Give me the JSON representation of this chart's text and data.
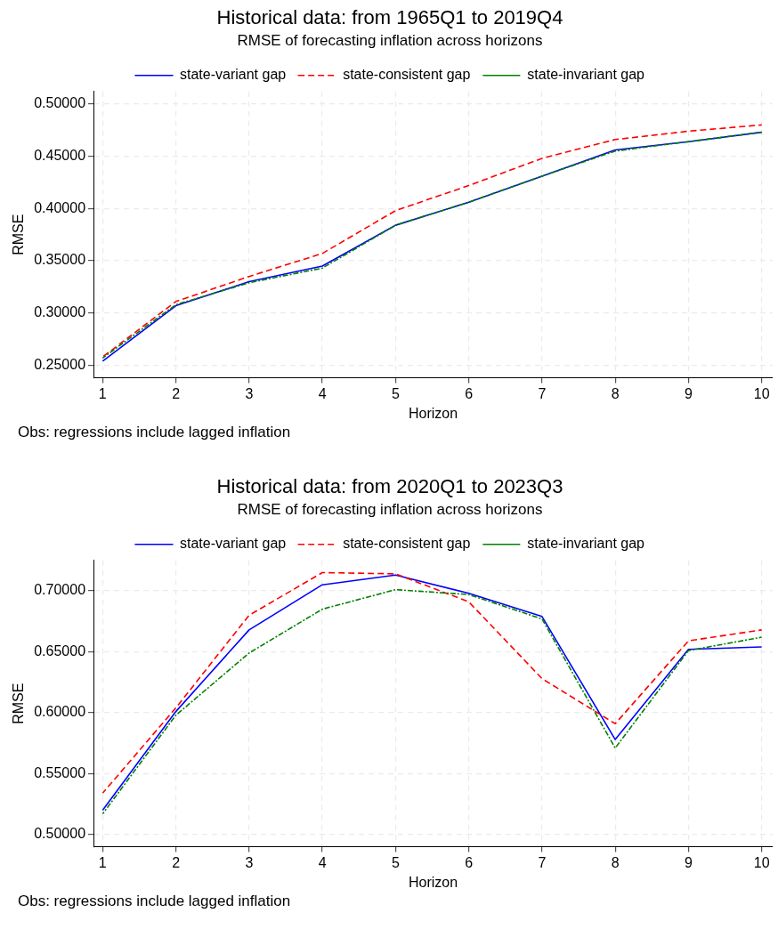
{
  "chart_data": [
    {
      "type": "line",
      "title": "Historical data: from 1965Q1 to 2019Q4",
      "subtitle": "RMSE of forecasting inflation across horizons",
      "xlabel": "Horizon",
      "ylabel": "RMSE",
      "x": [
        1,
        2,
        3,
        4,
        5,
        6,
        7,
        8,
        9,
        10
      ],
      "series": [
        {
          "name": "state-variant gap",
          "color": "#0000ff",
          "line_style": "solid",
          "values": [
            0.254,
            0.307,
            0.33,
            0.345,
            0.384,
            0.406,
            0.431,
            0.456,
            0.464,
            0.473
          ]
        },
        {
          "name": "state-consistent gap",
          "color": "#ff0000",
          "line_style": "dashed",
          "values": [
            0.258,
            0.311,
            0.335,
            0.357,
            0.398,
            0.422,
            0.448,
            0.466,
            0.474,
            0.48
          ]
        },
        {
          "name": "state-invariant gap",
          "color": "#008000",
          "line_style": "dashdot",
          "values": [
            0.257,
            0.308,
            0.329,
            0.343,
            0.384,
            0.406,
            0.431,
            0.455,
            0.464,
            0.473
          ]
        }
      ],
      "xlim": [
        0.875,
        10.15
      ],
      "xticks": [
        1,
        2,
        3,
        4,
        5,
        6,
        7,
        8,
        9,
        10
      ],
      "ylim": [
        0.238,
        0.512
      ],
      "yticks": [
        {
          "value": 0.25,
          "label": "0.25000"
        },
        {
          "value": 0.3,
          "label": "0.30000"
        },
        {
          "value": 0.35,
          "label": "0.35000"
        },
        {
          "value": 0.4,
          "label": "0.40000"
        },
        {
          "value": 0.45,
          "label": "0.45000"
        },
        {
          "value": 0.5,
          "label": "0.50000"
        }
      ],
      "grid": true,
      "legend": "top",
      "marker": "none",
      "annotations": [
        "Obs: regressions include lagged inflation"
      ]
    },
    {
      "type": "line",
      "title": "Historical data: from 2020Q1 to 2023Q3",
      "subtitle": "RMSE of forecasting inflation across horizons",
      "xlabel": "Horizon",
      "ylabel": "RMSE",
      "x": [
        1,
        2,
        3,
        4,
        5,
        6,
        7,
        8,
        9,
        10
      ],
      "series": [
        {
          "name": "state-variant gap",
          "color": "#0000ff",
          "line_style": "solid",
          "values": [
            0.52,
            0.601,
            0.668,
            0.705,
            0.713,
            0.698,
            0.679,
            0.578,
            0.652,
            0.654
          ]
        },
        {
          "name": "state-consistent gap",
          "color": "#ff0000",
          "line_style": "dashed",
          "values": [
            0.534,
            0.604,
            0.68,
            0.715,
            0.714,
            0.691,
            0.628,
            0.591,
            0.659,
            0.668
          ]
        },
        {
          "name": "state-invariant gap",
          "color": "#008000",
          "line_style": "dashdot",
          "values": [
            0.517,
            0.598,
            0.649,
            0.685,
            0.701,
            0.697,
            0.677,
            0.571,
            0.651,
            0.662
          ]
        }
      ],
      "xlim": [
        0.875,
        10.15
      ],
      "xticks": [
        1,
        2,
        3,
        4,
        5,
        6,
        7,
        8,
        9,
        10
      ],
      "ylim": [
        0.49,
        0.725
      ],
      "yticks": [
        {
          "value": 0.5,
          "label": "0.50000"
        },
        {
          "value": 0.55,
          "label": "0.55000"
        },
        {
          "value": 0.6,
          "label": "0.60000"
        },
        {
          "value": 0.65,
          "label": "0.65000"
        },
        {
          "value": 0.7,
          "label": "0.70000"
        }
      ],
      "grid": true,
      "legend": "top",
      "marker": "none",
      "annotations": [
        "Obs: regressions include lagged inflation"
      ]
    }
  ]
}
